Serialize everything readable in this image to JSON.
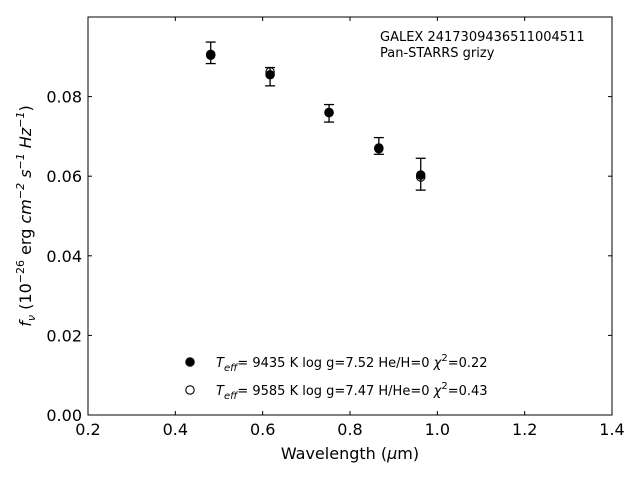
{
  "chart_data": {
    "type": "scatter",
    "title": "",
    "xlabel": "Wavelength (μm)",
    "ylabel": "fν (10⁻²⁶ erg cm⁻² s⁻¹ Hz⁻¹)",
    "xlim": [
      0.2,
      1.4
    ],
    "ylim": [
      0.0,
      0.1
    ],
    "x_ticks": [
      "0.2",
      "0.4",
      "0.6",
      "0.8",
      "1.0",
      "1.2",
      "1.4"
    ],
    "y_ticks": [
      "0.00",
      "0.02",
      "0.04",
      "0.06",
      "0.08"
    ],
    "grid": false,
    "annotation": [
      "GALEX 2417309436511004511",
      "Pan-STARRS grizy"
    ],
    "series": [
      {
        "name": "Teff= 9435 K log g=7.52 He/H=0 χ²=0.22",
        "marker": "filled-circle",
        "points": [
          {
            "x": 0.481,
            "y": 0.0906
          },
          {
            "x": 0.617,
            "y": 0.0855
          },
          {
            "x": 0.752,
            "y": 0.076
          },
          {
            "x": 0.866,
            "y": 0.0669
          },
          {
            "x": 0.962,
            "y": 0.0603
          }
        ]
      },
      {
        "name": "Teff= 9585 K log g=7.47 H/He=0 χ²=0.43",
        "marker": "open-circle",
        "points": [
          {
            "x": 0.481,
            "y": 0.0904
          },
          {
            "x": 0.617,
            "y": 0.0862
          },
          {
            "x": 0.752,
            "y": 0.076
          },
          {
            "x": 0.866,
            "y": 0.0671
          },
          {
            "x": 0.962,
            "y": 0.0598
          }
        ]
      }
    ],
    "observed": {
      "points": [
        {
          "x": 0.481,
          "y": 0.091,
          "err": 0.0027
        },
        {
          "x": 0.617,
          "y": 0.085,
          "err": 0.0023
        },
        {
          "x": 0.752,
          "y": 0.0758,
          "err": 0.0022
        },
        {
          "x": 0.866,
          "y": 0.0676,
          "err": 0.0021
        },
        {
          "x": 0.962,
          "y": 0.0605,
          "err": 0.004
        }
      ]
    },
    "legend": {
      "placement": "lower-center",
      "entries": [
        {
          "prefix": "T",
          "sub": "eff",
          "text": "=  9435 K  log g=7.52  He/H=0  ",
          "chi": "χ",
          "sup": "2",
          "tail": "=0.22",
          "marker": "filled-circle"
        },
        {
          "prefix": "T",
          "sub": "eff",
          "text": "=  9585 K  log g=7.47  H/He=0  ",
          "chi": "χ",
          "sup": "2",
          "tail": "=0.43",
          "marker": "open-circle"
        }
      ]
    }
  }
}
